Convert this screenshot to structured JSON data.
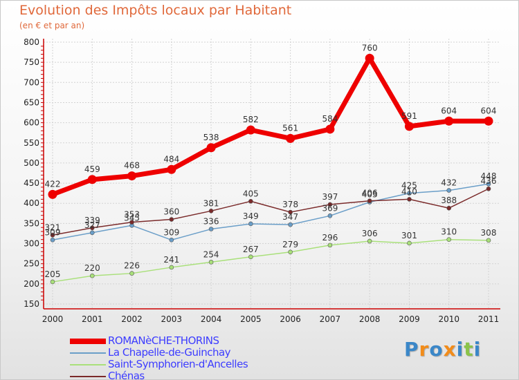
{
  "title": "Evolution des Impôts locaux par Habitant",
  "subtitle": "(en € et par an)",
  "chart_data": {
    "type": "line",
    "x": [
      "2000",
      "2001",
      "2002",
      "2003",
      "2004",
      "2005",
      "2006",
      "2007",
      "2008",
      "2009",
      "2010",
      "2011"
    ],
    "ylim": [
      150,
      800
    ],
    "yticks": [
      150,
      200,
      250,
      300,
      350,
      400,
      450,
      500,
      550,
      600,
      650,
      700,
      750,
      800
    ],
    "grid": true,
    "legend_position": "bottom-left",
    "series": [
      {
        "name": "ROMANèCHE-THORINS",
        "color": "#ee0000",
        "values": [
          422,
          459,
          468,
          484,
          538,
          582,
          561,
          584,
          760,
          591,
          604,
          604
        ],
        "labels": [
          "422",
          "459",
          "468",
          "484",
          "538",
          "582",
          "561",
          "584",
          "760",
          "591",
          "604",
          "604"
        ]
      },
      {
        "name": "La Chapelle-de-Guinchay",
        "color": "#6a9ec8",
        "values": [
          309,
          327,
          345,
          309,
          336,
          349,
          347,
          369,
          403,
          425,
          432,
          448
        ],
        "labels": [
          "309",
          "327",
          "345",
          "309",
          "336",
          "349",
          "347",
          "369",
          "403",
          "425",
          "432",
          "448"
        ]
      },
      {
        "name": "Saint-Symphorien-d'Ancelles",
        "color": "#a9e07a",
        "values": [
          205,
          220,
          226,
          241,
          254,
          267,
          279,
          296,
          306,
          301,
          310,
          308
        ],
        "labels": [
          "205",
          "220",
          "226",
          "241",
          "254",
          "267",
          "279",
          "296",
          "306",
          "301",
          "310",
          "308"
        ]
      },
      {
        "name": "Chénas",
        "color": "#7a2a2a",
        "values": [
          321,
          339,
          353,
          360,
          381,
          405,
          378,
          397,
          406,
          410,
          388,
          436
        ],
        "labels": [
          "321",
          "339",
          "353",
          "360",
          "381",
          "405",
          "378",
          "397",
          "406",
          "410",
          "388",
          "436"
        ]
      }
    ]
  },
  "brand": {
    "letters": [
      "P",
      "r",
      "o",
      "x",
      "i",
      "t",
      "i"
    ],
    "colors": [
      "#3b87c8",
      "#f28c1a",
      "#3b87c8",
      "#f28c1a",
      "#3b87c8",
      "#8bc34a",
      "#3b87c8"
    ]
  }
}
